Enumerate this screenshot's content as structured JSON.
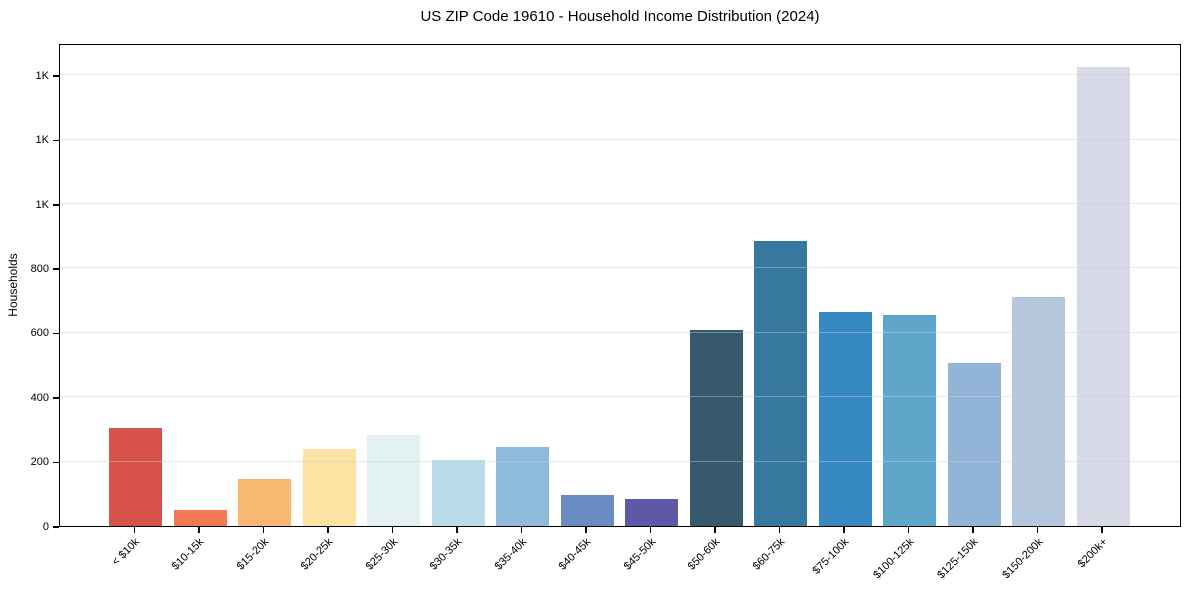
{
  "chart_data": {
    "type": "bar",
    "title": "US ZIP Code 19610 - Household Income Distribution (2024)",
    "xlabel": "",
    "ylabel": "Households",
    "categories": [
      "< $10k",
      "$10-15k",
      "$15-20k",
      "$20-25k",
      "$25-30k",
      "$30-35k",
      "$35-40k",
      "$40-45k",
      "$45-50k",
      "$50-60k",
      "$60-75k",
      "$75-100k",
      "$100-125k",
      "$125-150k",
      "$150-200k",
      "$200k+"
    ],
    "values": [
      305,
      50,
      145,
      240,
      283,
      205,
      245,
      95,
      85,
      610,
      885,
      665,
      655,
      505,
      710,
      1425
    ],
    "bar_colors": [
      "#d6524b",
      "#f37955",
      "#f9b871",
      "#fce3a3",
      "#e4f1f2",
      "#b8dcea",
      "#8fbbdb",
      "#698dc3",
      "#5d59a7",
      "#36596b",
      "#37789e",
      "#3789c1",
      "#5fa6cb",
      "#92b5d7",
      "#b5c7dd",
      "#d9dae7"
    ],
    "ylim": [
      0,
      1500
    ],
    "y_ticks": [
      {
        "value": 0,
        "label": "0"
      },
      {
        "value": 200,
        "label": "200"
      },
      {
        "value": 400,
        "label": "400"
      },
      {
        "value": 600,
        "label": "600"
      },
      {
        "value": 800,
        "label": "800"
      },
      {
        "value": 1000,
        "label": "1K"
      },
      {
        "value": 1200,
        "label": "1K"
      },
      {
        "value": 1400,
        "label": "1K"
      }
    ],
    "grid": "horizontal, light gray, drawn over bars",
    "legend": "none",
    "colors": {
      "background": "#ffffff",
      "spine": "#000000",
      "grid": "#e3e3e3",
      "text": "#000000"
    }
  }
}
